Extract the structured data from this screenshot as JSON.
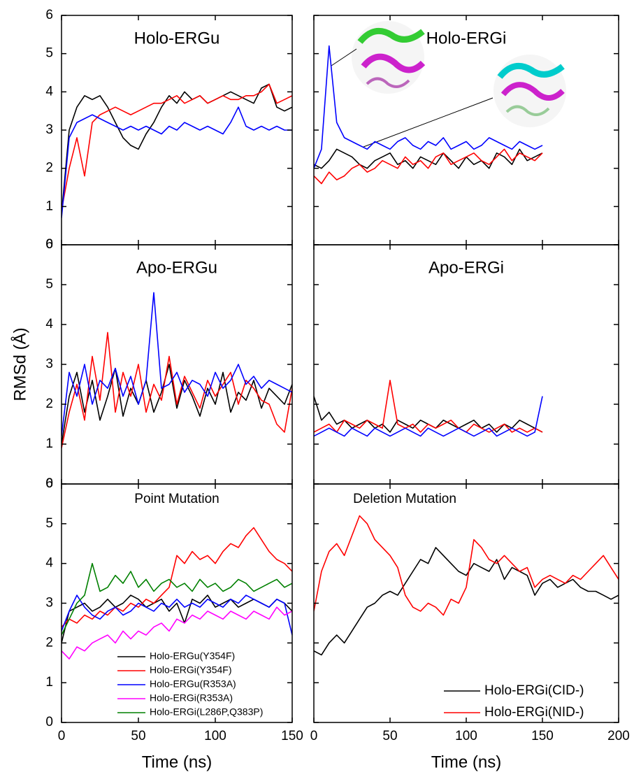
{
  "chart_data": [
    {
      "type": "line",
      "title": "Holo-ERGu",
      "x": [
        0,
        5,
        10,
        15,
        20,
        25,
        30,
        35,
        40,
        45,
        50,
        55,
        60,
        65,
        70,
        75,
        80,
        85,
        90,
        95,
        100,
        105,
        110,
        115,
        120,
        125,
        130,
        135,
        140,
        145,
        150
      ],
      "series": [
        {
          "color": "#000000",
          "values": [
            0.8,
            3.0,
            3.6,
            3.9,
            3.8,
            3.9,
            3.6,
            3.2,
            2.8,
            2.6,
            2.5,
            2.9,
            3.2,
            3.6,
            3.9,
            3.7,
            4.0,
            3.8,
            3.9,
            3.7,
            3.8,
            3.9,
            4.0,
            3.9,
            3.8,
            3.7,
            4.1,
            4.2,
            3.6,
            3.5,
            3.6
          ]
        },
        {
          "color": "#ff0000",
          "values": [
            0.9,
            2.0,
            2.8,
            1.8,
            3.2,
            3.4,
            3.5,
            3.6,
            3.5,
            3.4,
            3.5,
            3.6,
            3.7,
            3.7,
            3.8,
            3.9,
            3.7,
            3.8,
            3.9,
            3.7,
            3.8,
            3.9,
            3.8,
            3.8,
            3.9,
            3.9,
            4.0,
            4.2,
            3.7,
            3.8,
            3.9
          ]
        },
        {
          "color": "#0000ff",
          "values": [
            0.7,
            2.8,
            3.2,
            3.3,
            3.4,
            3.3,
            3.2,
            3.1,
            3.0,
            3.1,
            3.0,
            3.1,
            3.0,
            2.9,
            3.1,
            3.0,
            3.2,
            3.1,
            3.0,
            3.1,
            3.0,
            2.9,
            3.2,
            3.6,
            3.1,
            3.0,
            3.1,
            3.0,
            3.1,
            3.0,
            3.0
          ]
        }
      ],
      "xlim": [
        0,
        150
      ],
      "ylim": [
        0,
        6
      ],
      "yticks": [
        0,
        1,
        2,
        3,
        4,
        5,
        6
      ]
    },
    {
      "type": "line",
      "title": "Holo-ERGi",
      "x": [
        0,
        5,
        10,
        15,
        20,
        25,
        30,
        35,
        40,
        45,
        50,
        55,
        60,
        65,
        70,
        75,
        80,
        85,
        90,
        95,
        100,
        105,
        110,
        115,
        120,
        125,
        130,
        135,
        140,
        145,
        150
      ],
      "series": [
        {
          "color": "#000000",
          "values": [
            2.1,
            2.0,
            2.2,
            2.5,
            2.4,
            2.3,
            2.1,
            2.0,
            2.2,
            2.3,
            2.4,
            2.1,
            2.2,
            2.0,
            2.3,
            2.2,
            2.1,
            2.4,
            2.2,
            2.0,
            2.3,
            2.1,
            2.2,
            2.0,
            2.4,
            2.3,
            2.1,
            2.5,
            2.2,
            2.3,
            2.4
          ]
        },
        {
          "color": "#ff0000",
          "values": [
            1.8,
            1.6,
            1.9,
            1.7,
            1.8,
            2.0,
            2.1,
            1.9,
            2.0,
            2.2,
            2.1,
            2.0,
            2.3,
            2.1,
            2.2,
            2.0,
            2.3,
            2.4,
            2.1,
            2.2,
            2.3,
            2.4,
            2.2,
            2.1,
            2.3,
            2.5,
            2.2,
            2.4,
            2.3,
            2.2,
            2.4
          ]
        },
        {
          "color": "#0000ff",
          "values": [
            2.0,
            2.5,
            5.2,
            3.2,
            2.8,
            2.7,
            2.6,
            2.5,
            2.7,
            2.6,
            2.5,
            2.7,
            2.8,
            2.6,
            2.5,
            2.7,
            2.6,
            2.8,
            2.5,
            2.6,
            2.7,
            2.5,
            2.6,
            2.8,
            2.7,
            2.6,
            2.5,
            2.7,
            2.6,
            2.5,
            2.6
          ]
        }
      ],
      "xlim": [
        0,
        200
      ],
      "ylim": [
        0,
        6
      ]
    },
    {
      "type": "line",
      "title": "Apo-ERGu",
      "y_label": "RMSd (Å)",
      "x": [
        0,
        5,
        10,
        15,
        20,
        25,
        30,
        35,
        40,
        45,
        50,
        55,
        60,
        65,
        70,
        75,
        80,
        85,
        90,
        95,
        100,
        105,
        110,
        115,
        120,
        125,
        130,
        135,
        140,
        145,
        150
      ],
      "series": [
        {
          "color": "#000000",
          "values": [
            1.0,
            2.2,
            2.8,
            1.8,
            2.6,
            1.6,
            2.2,
            2.9,
            1.7,
            2.4,
            2.0,
            2.6,
            1.8,
            2.3,
            3.0,
            1.9,
            2.6,
            2.2,
            1.7,
            2.4,
            2.0,
            2.8,
            1.8,
            2.3,
            2.1,
            2.6,
            1.9,
            2.4,
            2.2,
            2.0,
            2.5
          ]
        },
        {
          "color": "#ff0000",
          "values": [
            0.9,
            1.8,
            2.5,
            1.6,
            3.2,
            2.1,
            3.8,
            1.8,
            2.8,
            2.2,
            3.0,
            1.8,
            2.5,
            2.1,
            3.2,
            2.0,
            2.7,
            2.3,
            1.9,
            2.6,
            2.2,
            2.5,
            2.8,
            2.0,
            2.6,
            2.4,
            2.1,
            2.0,
            1.5,
            1.3,
            2.4
          ]
        },
        {
          "color": "#0000ff",
          "values": [
            1.2,
            2.8,
            2.2,
            3.0,
            2.0,
            2.6,
            2.4,
            2.9,
            2.2,
            2.7,
            2.0,
            2.6,
            4.8,
            2.4,
            2.5,
            2.8,
            2.3,
            2.6,
            2.5,
            2.2,
            2.8,
            2.4,
            2.6,
            3.0,
            2.5,
            2.7,
            2.4,
            2.6,
            2.5,
            2.4,
            2.3
          ]
        }
      ],
      "xlim": [
        0,
        150
      ],
      "ylim": [
        0,
        6
      ],
      "yticks": [
        0,
        1,
        2,
        3,
        4,
        5,
        6
      ]
    },
    {
      "type": "line",
      "title": "Apo-ERGi",
      "x": [
        0,
        5,
        10,
        15,
        20,
        25,
        30,
        35,
        40,
        45,
        50,
        55,
        60,
        65,
        70,
        75,
        80,
        85,
        90,
        95,
        100,
        105,
        110,
        115,
        120,
        125,
        130,
        135,
        140,
        145,
        150
      ],
      "series": [
        {
          "color": "#000000",
          "values": [
            2.2,
            1.6,
            1.8,
            1.5,
            1.6,
            1.4,
            1.5,
            1.6,
            1.4,
            1.5,
            1.3,
            1.6,
            1.5,
            1.4,
            1.6,
            1.5,
            1.4,
            1.6,
            1.5,
            1.4,
            1.5,
            1.6,
            1.4,
            1.5,
            1.3,
            1.5,
            1.4,
            1.6,
            1.5,
            1.4,
            1.3
          ]
        },
        {
          "color": "#ff0000",
          "values": [
            1.3,
            1.4,
            1.5,
            1.3,
            1.6,
            1.5,
            1.4,
            1.6,
            1.5,
            1.4,
            2.6,
            1.5,
            1.4,
            1.5,
            1.3,
            1.5,
            1.4,
            1.5,
            1.6,
            1.4,
            1.3,
            1.5,
            1.4,
            1.3,
            1.4,
            1.5,
            1.3,
            1.4,
            1.3,
            1.4,
            1.3
          ]
        },
        {
          "color": "#0000ff",
          "values": [
            1.2,
            1.3,
            1.4,
            1.3,
            1.2,
            1.4,
            1.3,
            1.2,
            1.4,
            1.3,
            1.2,
            1.3,
            1.4,
            1.3,
            1.2,
            1.4,
            1.3,
            1.2,
            1.3,
            1.4,
            1.3,
            1.2,
            1.3,
            1.4,
            1.2,
            1.3,
            1.4,
            1.3,
            1.2,
            1.3,
            2.2
          ]
        }
      ],
      "xlim": [
        0,
        200
      ],
      "ylim": [
        0,
        6
      ]
    },
    {
      "type": "line",
      "title": "Point Mutation",
      "x_label": "Time (ns)",
      "legend": "lower left",
      "x": [
        0,
        5,
        10,
        15,
        20,
        25,
        30,
        35,
        40,
        45,
        50,
        55,
        60,
        65,
        70,
        75,
        80,
        85,
        90,
        95,
        100,
        105,
        110,
        115,
        120,
        125,
        130,
        135,
        140,
        145,
        150
      ],
      "series": [
        {
          "name": "Holo-ERGu(Y354F)",
          "color": "#000000",
          "values": [
            2.0,
            2.8,
            2.9,
            3.0,
            2.8,
            2.9,
            3.1,
            2.9,
            3.0,
            3.2,
            3.1,
            2.9,
            3.0,
            3.1,
            2.8,
            3.0,
            2.5,
            3.1,
            3.0,
            3.2,
            2.9,
            3.0,
            3.1,
            2.9,
            3.0,
            3.1,
            3.0,
            2.9,
            3.1,
            3.0,
            2.8
          ]
        },
        {
          "name": "Holo-ERGi(Y354F)",
          "color": "#ff0000",
          "values": [
            2.4,
            2.6,
            2.5,
            2.7,
            2.6,
            2.8,
            2.7,
            2.9,
            2.8,
            3.0,
            2.9,
            3.1,
            3.0,
            3.2,
            3.4,
            4.2,
            4.0,
            4.3,
            4.1,
            4.2,
            4.0,
            4.3,
            4.5,
            4.4,
            4.7,
            4.9,
            4.6,
            4.3,
            4.1,
            4.0,
            3.8
          ]
        },
        {
          "name": "Holo-ERGu(R353A)",
          "color": "#0000ff",
          "values": [
            2.3,
            2.8,
            3.2,
            2.9,
            2.7,
            2.6,
            2.8,
            2.9,
            2.7,
            2.8,
            3.0,
            2.9,
            2.8,
            3.0,
            2.9,
            3.1,
            2.9,
            3.0,
            2.9,
            3.1,
            3.0,
            2.9,
            3.1,
            3.0,
            3.2,
            3.1,
            3.0,
            2.9,
            3.1,
            3.0,
            2.2
          ]
        },
        {
          "name": "Holo-ERGi(R353A)",
          "color": "#ff00ff",
          "values": [
            1.8,
            1.6,
            1.9,
            1.8,
            2.0,
            2.1,
            2.2,
            2.0,
            2.3,
            2.1,
            2.3,
            2.2,
            2.4,
            2.5,
            2.3,
            2.6,
            2.5,
            2.7,
            2.6,
            2.8,
            2.7,
            2.6,
            2.8,
            2.7,
            2.6,
            2.8,
            2.7,
            2.6,
            2.9,
            2.7,
            2.8
          ]
        },
        {
          "name": "Holo-ERGi(L286P,Q383P)",
          "color": "#008000",
          "values": [
            2.2,
            2.6,
            3.0,
            3.2,
            4.0,
            3.3,
            3.4,
            3.7,
            3.5,
            3.8,
            3.4,
            3.6,
            3.3,
            3.5,
            3.6,
            3.4,
            3.5,
            3.3,
            3.6,
            3.4,
            3.5,
            3.3,
            3.4,
            3.6,
            3.5,
            3.3,
            3.4,
            3.5,
            3.6,
            3.4,
            3.5
          ]
        }
      ],
      "xlim": [
        0,
        150
      ],
      "ylim": [
        0,
        6
      ],
      "xticks": [
        0,
        50,
        100,
        150
      ],
      "yticks": [
        0,
        1,
        2,
        3,
        4,
        5,
        6
      ]
    },
    {
      "type": "line",
      "title": "Deletion Mutation",
      "x_label": "Time (ns)",
      "legend": "lower right",
      "x": [
        0,
        5,
        10,
        15,
        20,
        25,
        30,
        35,
        40,
        45,
        50,
        55,
        60,
        65,
        70,
        75,
        80,
        85,
        90,
        95,
        100,
        105,
        110,
        115,
        120,
        125,
        130,
        135,
        140,
        145,
        150,
        155,
        160,
        165,
        170,
        175,
        180,
        185,
        190,
        195,
        200
      ],
      "series": [
        {
          "name": "Holo-ERGi(CID-)",
          "color": "#000000",
          "values": [
            1.8,
            1.7,
            2.0,
            2.2,
            2.0,
            2.3,
            2.6,
            2.9,
            3.0,
            3.2,
            3.3,
            3.2,
            3.5,
            3.8,
            4.1,
            4.0,
            4.4,
            4.2,
            4.0,
            3.8,
            3.7,
            4.0,
            3.9,
            3.8,
            4.1,
            3.6,
            3.9,
            3.8,
            3.7,
            3.2,
            3.5,
            3.6,
            3.4,
            3.5,
            3.6,
            3.4,
            3.3,
            3.3,
            3.2,
            3.1,
            3.2
          ]
        },
        {
          "name": "Holo-ERGi(NID-)",
          "color": "#ff0000",
          "values": [
            2.8,
            3.8,
            4.3,
            4.5,
            4.2,
            4.7,
            5.2,
            5.0,
            4.6,
            4.4,
            4.2,
            3.9,
            3.2,
            2.9,
            2.8,
            3.0,
            2.9,
            2.7,
            3.1,
            3.0,
            3.4,
            4.6,
            4.4,
            4.1,
            4.0,
            4.2,
            4.0,
            3.8,
            3.9,
            3.4,
            3.6,
            3.7,
            3.6,
            3.5,
            3.7,
            3.6,
            3.8,
            4.0,
            4.2,
            3.9,
            3.6
          ]
        }
      ],
      "xlim": [
        0,
        200
      ],
      "ylim": [
        0,
        6
      ],
      "xticks": [
        0,
        50,
        100,
        150,
        200
      ]
    }
  ]
}
